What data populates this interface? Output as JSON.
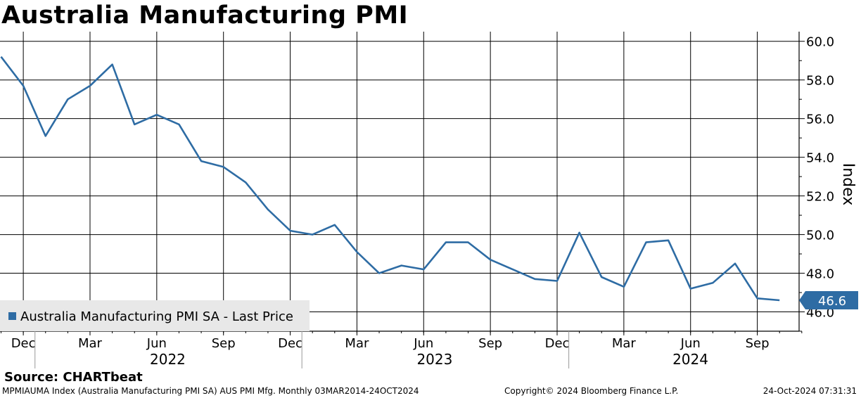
{
  "title": "Australia Manufacturing PMI",
  "source": "Source: CHARTbeat",
  "footer": {
    "left": "MPMIAUMA Index (Australia Manufacturing PMI SA) AUS PMI Mfg.  Monthly 03MAR2014-24OCT2024",
    "center": "Copyright© 2024 Bloomberg Finance L.P.",
    "right": "24-Oct-2024 07:31:31"
  },
  "colors": {
    "series": "#2e6ca4",
    "grid": "#000000",
    "legend_bg": "#e8e8e8"
  },
  "chart_data": {
    "type": "line",
    "title": "Australia Manufacturing PMI",
    "ylabel": "Index",
    "ylim": [
      45,
      60.5
    ],
    "y_ticks": [
      "46.0",
      "48.0",
      "50.0",
      "52.0",
      "54.0",
      "56.0",
      "58.0",
      "60.0"
    ],
    "x_month_ticks": [
      "Dec",
      "Mar",
      "Jun",
      "Sep",
      "Dec",
      "Mar",
      "Jun",
      "Sep",
      "Dec",
      "Mar",
      "Jun",
      "Sep"
    ],
    "x_year_labels": [
      "2022",
      "2023",
      "2024"
    ],
    "grid": true,
    "legend_position": "bottom-left",
    "last_value_label": "46.6",
    "series": [
      {
        "name": "Australia Manufacturing PMI SA - Last Price",
        "x": [
          "2021-11",
          "2021-12",
          "2022-01",
          "2022-02",
          "2022-03",
          "2022-04",
          "2022-05",
          "2022-06",
          "2022-07",
          "2022-08",
          "2022-09",
          "2022-10",
          "2022-11",
          "2022-12",
          "2023-01",
          "2023-02",
          "2023-03",
          "2023-04",
          "2023-05",
          "2023-06",
          "2023-07",
          "2023-08",
          "2023-09",
          "2023-10",
          "2023-11",
          "2023-12",
          "2024-01",
          "2024-02",
          "2024-03",
          "2024-04",
          "2024-05",
          "2024-06",
          "2024-07",
          "2024-08",
          "2024-09",
          "2024-10"
        ],
        "values": [
          59.2,
          57.7,
          55.1,
          57.0,
          57.7,
          58.8,
          55.7,
          56.2,
          55.7,
          53.8,
          53.5,
          52.7,
          51.3,
          50.2,
          50.0,
          50.5,
          49.1,
          48.0,
          48.4,
          48.2,
          49.6,
          49.6,
          48.7,
          48.2,
          47.7,
          47.6,
          50.1,
          47.8,
          47.3,
          49.6,
          49.7,
          47.2,
          47.5,
          48.5,
          46.7,
          46.6
        ]
      }
    ]
  }
}
